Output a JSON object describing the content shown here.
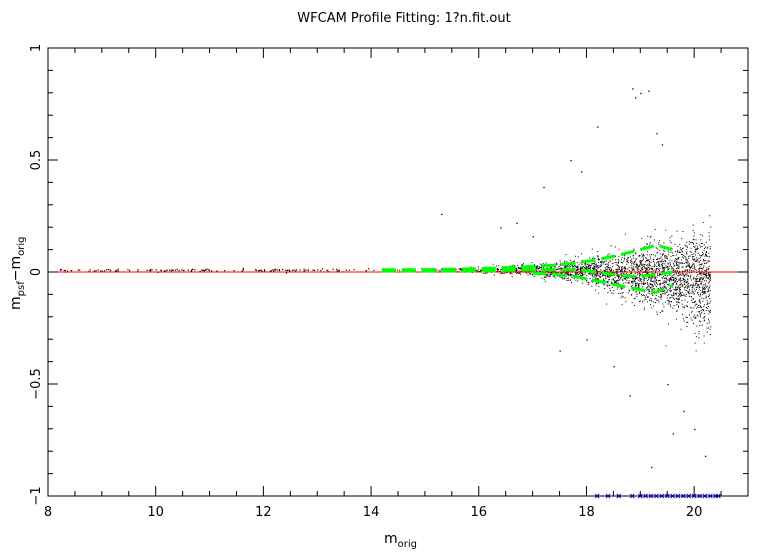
{
  "chart_data": {
    "type": "scatter",
    "title": "WFCAM  Profile  Fitting:  1?n.fit.out",
    "xlabel": {
      "main": "m",
      "sub": "orig"
    },
    "ylabel": {
      "main1": "m",
      "sub1": "psf",
      "dash": "−",
      "main2": "m",
      "sub2": "orig"
    },
    "xlim": [
      8,
      21
    ],
    "ylim": [
      -1,
      1
    ],
    "x_ticks": [
      {
        "value": 8,
        "label": "8"
      },
      {
        "value": 10,
        "label": "10"
      },
      {
        "value": 12,
        "label": "12"
      },
      {
        "value": 14,
        "label": "14"
      },
      {
        "value": 16,
        "label": "16"
      },
      {
        "value": 18,
        "label": "18"
      },
      {
        "value": 20,
        "label": "20"
      }
    ],
    "y_ticks": [
      {
        "value": -1,
        "label": "−1"
      },
      {
        "value": -0.5,
        "label": "−0.5"
      },
      {
        "value": 0,
        "label": "0"
      },
      {
        "value": 0.5,
        "label": "0.5"
      },
      {
        "value": 1,
        "label": "1"
      }
    ],
    "grid": false,
    "reference_line": {
      "y": 0,
      "color": "#ff0000"
    },
    "median_curve": {
      "color": "#00ff00",
      "x": [
        14.2,
        14.6,
        15.0,
        15.4,
        15.8,
        16.2,
        16.6,
        17.0,
        17.4,
        17.8,
        18.2,
        18.6,
        19.0,
        19.3,
        19.6
      ],
      "y": [
        0.005,
        0.005,
        0.005,
        0.005,
        0.005,
        0.005,
        0.008,
        0.01,
        0.01,
        0.01,
        0.0,
        -0.015,
        -0.02,
        -0.01,
        0.0
      ]
    },
    "upper_curve": {
      "color": "#00ff00",
      "x": [
        14.2,
        14.6,
        15.0,
        15.4,
        15.8,
        16.2,
        16.6,
        17.0,
        17.4,
        17.8,
        18.2,
        18.6,
        19.0,
        19.3,
        19.6
      ],
      "y": [
        0.01,
        0.01,
        0.01,
        0.012,
        0.014,
        0.017,
        0.02,
        0.025,
        0.03,
        0.04,
        0.055,
        0.075,
        0.1,
        0.12,
        0.1
      ]
    },
    "lower_curve": {
      "color": "#00ff00",
      "x": [
        17.0,
        17.4,
        17.8,
        18.2,
        18.6,
        19.0,
        19.3,
        19.6
      ],
      "y": [
        -0.005,
        -0.01,
        -0.02,
        -0.04,
        -0.06,
        -0.08,
        -0.09,
        -0.06
      ]
    },
    "scatter_series": {
      "color": "#000000",
      "bright_sequence_x_range": [
        8.2,
        14.1
      ],
      "bright_sequence_y": 0.01,
      "dense_cloud_x_range": [
        14.1,
        20.3
      ],
      "description_points_outliers": [
        [
          18.85,
          0.82
        ],
        [
          19.0,
          0.8
        ],
        [
          19.15,
          0.81
        ],
        [
          18.9,
          0.78
        ],
        [
          19.3,
          0.62
        ],
        [
          19.4,
          0.57
        ],
        [
          18.2,
          0.65
        ],
        [
          17.7,
          0.5
        ],
        [
          17.9,
          0.45
        ],
        [
          15.3,
          0.26
        ],
        [
          17.2,
          0.38
        ],
        [
          16.4,
          0.2
        ],
        [
          16.7,
          0.22
        ],
        [
          17.0,
          0.16
        ],
        [
          19.5,
          -0.5
        ],
        [
          19.8,
          -0.62
        ],
        [
          19.6,
          -0.72
        ],
        [
          20.0,
          -0.7
        ],
        [
          18.8,
          -0.55
        ],
        [
          18.5,
          -0.42
        ],
        [
          20.2,
          -0.82
        ],
        [
          19.2,
          -0.87
        ],
        [
          17.5,
          -0.35
        ],
        [
          18.0,
          -0.3
        ]
      ]
    },
    "faint_markers": {
      "color": "#0000ff",
      "symbol": "x",
      "y": -1.0,
      "x": [
        18.2,
        18.4,
        18.6,
        18.85,
        19.0,
        19.1,
        19.2,
        19.3,
        19.4,
        19.5,
        19.6,
        19.7,
        19.8,
        19.9,
        20.0,
        20.1,
        20.2,
        20.3,
        20.4,
        20.45
      ]
    }
  }
}
